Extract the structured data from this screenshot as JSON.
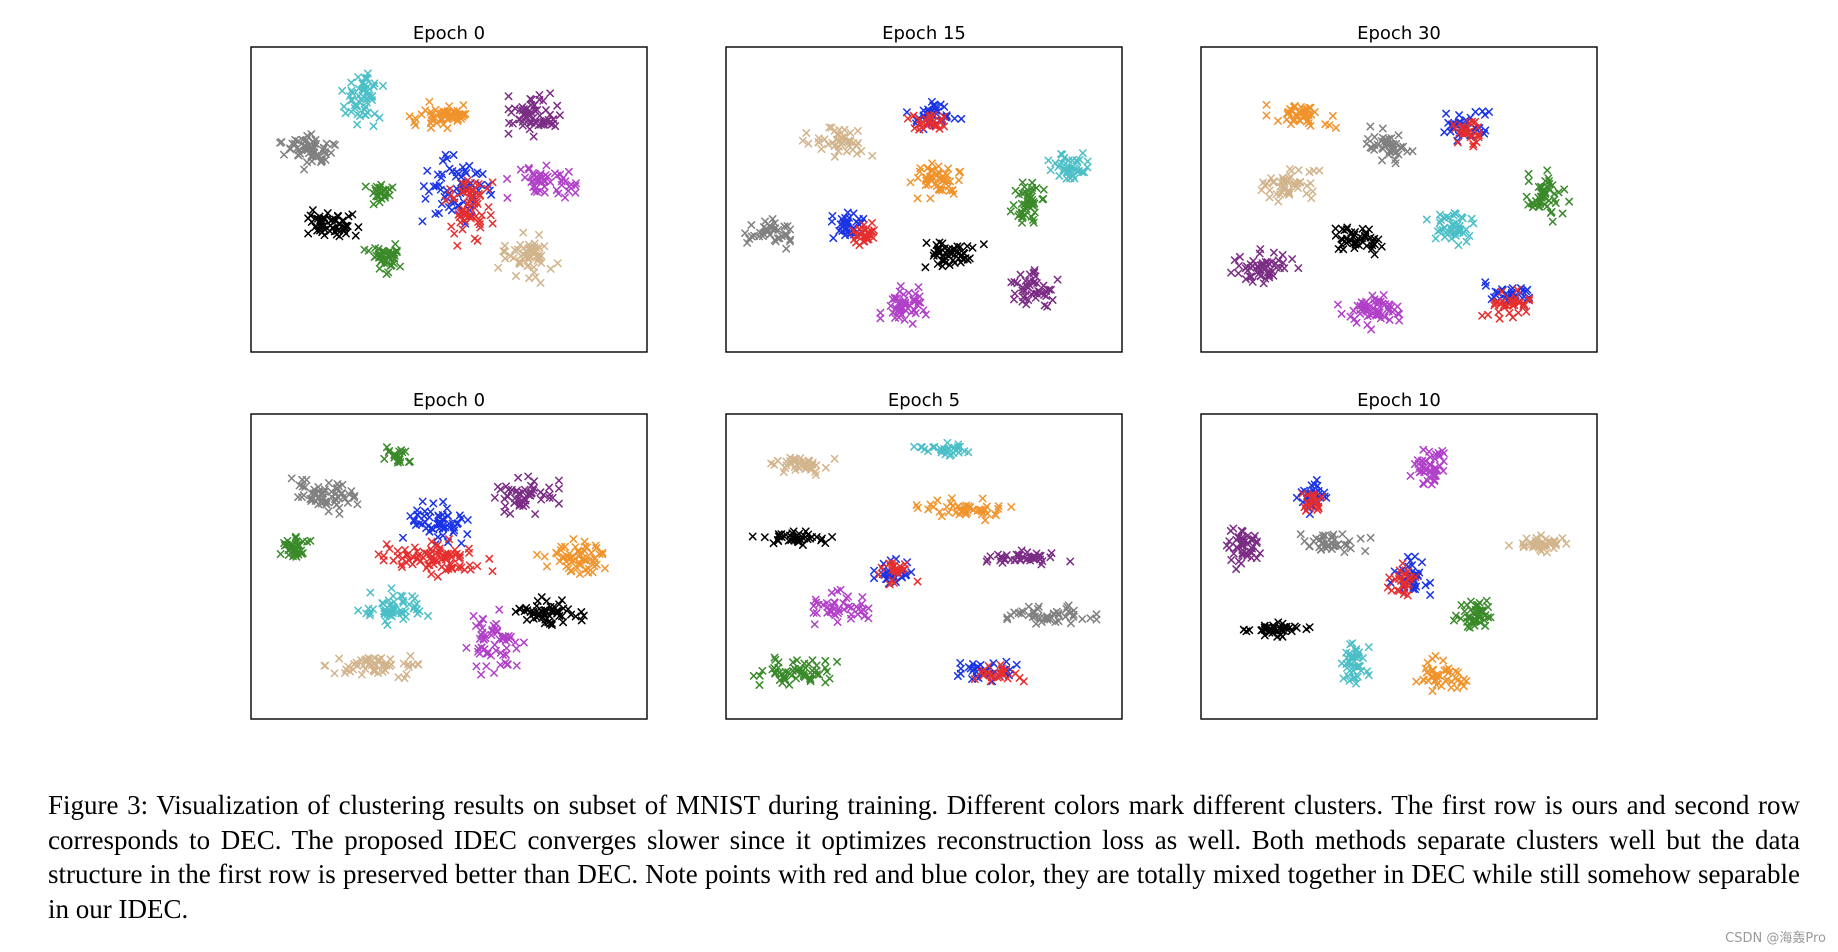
{
  "chart_data": [
    {
      "type": "scatter",
      "title": "Epoch 0",
      "xlim": [
        0,
        100
      ],
      "ylim": [
        0,
        100
      ],
      "grid": false,
      "marker": "x",
      "clusters": [
        {
          "color": "#4bbfc7",
          "center": [
            27,
            85
          ],
          "spread": [
            5,
            7
          ],
          "n": 55
        },
        {
          "color": "#808080",
          "center": [
            13,
            67
          ],
          "spread": [
            6,
            5
          ],
          "n": 60
        },
        {
          "color": "#f0932b",
          "center": [
            48,
            79
          ],
          "spread": [
            7,
            4
          ],
          "n": 55
        },
        {
          "color": "#7b2d85",
          "center": [
            72,
            80
          ],
          "spread": [
            6,
            6
          ],
          "n": 60
        },
        {
          "color": "#b040c8",
          "center": [
            76,
            56
          ],
          "spread": [
            8,
            5
          ],
          "n": 50
        },
        {
          "color": "#1a33e6",
          "center": [
            53,
            53
          ],
          "spread": [
            8,
            11
          ],
          "n": 70
        },
        {
          "color": "#e62e2e",
          "center": [
            55,
            47
          ],
          "spread": [
            5,
            10
          ],
          "n": 60
        },
        {
          "color": "#3a8a2a",
          "center": [
            31,
            52
          ],
          "spread": [
            3,
            3
          ],
          "n": 25
        },
        {
          "color": "#3a8a2a",
          "center": [
            33,
            30
          ],
          "spread": [
            5,
            5
          ],
          "n": 40
        },
        {
          "color": "#000000",
          "center": [
            18,
            41
          ],
          "spread": [
            6,
            5
          ],
          "n": 60
        },
        {
          "color": "#d2b48c",
          "center": [
            71,
            30
          ],
          "spread": [
            6,
            7
          ],
          "n": 55
        }
      ]
    },
    {
      "type": "scatter",
      "title": "Epoch 15",
      "xlim": [
        0,
        100
      ],
      "ylim": [
        0,
        100
      ],
      "grid": false,
      "marker": "x",
      "clusters": [
        {
          "color": "#d2b48c",
          "center": [
            27,
            70
          ],
          "spread": [
            7,
            4
          ],
          "n": 45
        },
        {
          "color": "#1a33e6",
          "center": [
            52,
            79
          ],
          "spread": [
            6,
            4
          ],
          "n": 40
        },
        {
          "color": "#e62e2e",
          "center": [
            51,
            77
          ],
          "spread": [
            4,
            3
          ],
          "n": 25
        },
        {
          "color": "#f0932b",
          "center": [
            53,
            57
          ],
          "spread": [
            5,
            5
          ],
          "n": 50
        },
        {
          "color": "#4bbfc7",
          "center": [
            89,
            61
          ],
          "spread": [
            5,
            4
          ],
          "n": 40
        },
        {
          "color": "#3a8a2a",
          "center": [
            77,
            49
          ],
          "spread": [
            4,
            7
          ],
          "n": 50
        },
        {
          "color": "#808080",
          "center": [
            9,
            38
          ],
          "spread": [
            5,
            4
          ],
          "n": 40
        },
        {
          "color": "#1a33e6",
          "center": [
            30,
            41
          ],
          "spread": [
            4,
            5
          ],
          "n": 35
        },
        {
          "color": "#e62e2e",
          "center": [
            34,
            38
          ],
          "spread": [
            3,
            4
          ],
          "n": 30
        },
        {
          "color": "#000000",
          "center": [
            58,
            31
          ],
          "spread": [
            6,
            4
          ],
          "n": 50
        },
        {
          "color": "#7b2d85",
          "center": [
            79,
            19
          ],
          "spread": [
            5,
            5
          ],
          "n": 45
        },
        {
          "color": "#b040c8",
          "center": [
            45,
            13
          ],
          "spread": [
            5,
            5
          ],
          "n": 50
        }
      ]
    },
    {
      "type": "scatter",
      "title": "Epoch 30",
      "xlim": [
        0,
        100
      ],
      "ylim": [
        0,
        100
      ],
      "grid": false,
      "marker": "x",
      "clusters": [
        {
          "color": "#f0932b",
          "center": [
            24,
            79
          ],
          "spread": [
            7,
            4
          ],
          "n": 45
        },
        {
          "color": "#808080",
          "center": [
            47,
            69
          ],
          "spread": [
            5,
            5
          ],
          "n": 45
        },
        {
          "color": "#1a33e6",
          "center": [
            68,
            76
          ],
          "spread": [
            5,
            5
          ],
          "n": 40
        },
        {
          "color": "#e62e2e",
          "center": [
            68,
            73
          ],
          "spread": [
            4,
            4
          ],
          "n": 25
        },
        {
          "color": "#d2b48c",
          "center": [
            21,
            55
          ],
          "spread": [
            7,
            5
          ],
          "n": 50
        },
        {
          "color": "#3a8a2a",
          "center": [
            89,
            51
          ],
          "spread": [
            5,
            7
          ],
          "n": 50
        },
        {
          "color": "#4bbfc7",
          "center": [
            64,
            40
          ],
          "spread": [
            5,
            5
          ],
          "n": 45
        },
        {
          "color": "#000000",
          "center": [
            40,
            36
          ],
          "spread": [
            6,
            4
          ],
          "n": 45
        },
        {
          "color": "#7b2d85",
          "center": [
            14,
            26
          ],
          "spread": [
            7,
            5
          ],
          "n": 55
        },
        {
          "color": "#b040c8",
          "center": [
            43,
            11
          ],
          "spread": [
            7,
            5
          ],
          "n": 60
        },
        {
          "color": "#1a33e6",
          "center": [
            79,
            17
          ],
          "spread": [
            7,
            3
          ],
          "n": 35
        },
        {
          "color": "#e62e2e",
          "center": [
            78,
            13
          ],
          "spread": [
            5,
            4
          ],
          "n": 35
        }
      ]
    },
    {
      "type": "scatter",
      "title": "Epoch 0",
      "xlim": [
        0,
        100
      ],
      "ylim": [
        0,
        100
      ],
      "grid": false,
      "marker": "x",
      "clusters": [
        {
          "color": "#808080",
          "center": [
            18,
            75
          ],
          "spread": [
            8,
            5
          ],
          "n": 60
        },
        {
          "color": "#3a8a2a",
          "center": [
            36,
            88
          ],
          "spread": [
            3,
            3
          ],
          "n": 20
        },
        {
          "color": "#7b2d85",
          "center": [
            70,
            75
          ],
          "spread": [
            7,
            5
          ],
          "n": 55
        },
        {
          "color": "#1a33e6",
          "center": [
            47,
            65
          ],
          "spread": [
            7,
            6
          ],
          "n": 60
        },
        {
          "color": "#e62e2e",
          "center": [
            47,
            53
          ],
          "spread": [
            13,
            5
          ],
          "n": 85
        },
        {
          "color": "#3a8a2a",
          "center": [
            9,
            57
          ],
          "spread": [
            4,
            4
          ],
          "n": 35
        },
        {
          "color": "#f0932b",
          "center": [
            84,
            53
          ],
          "spread": [
            8,
            5
          ],
          "n": 60
        },
        {
          "color": "#4bbfc7",
          "center": [
            36,
            36
          ],
          "spread": [
            8,
            5
          ],
          "n": 55
        },
        {
          "color": "#000000",
          "center": [
            76,
            34
          ],
          "spread": [
            8,
            4
          ],
          "n": 55
        },
        {
          "color": "#b040c8",
          "center": [
            62,
            23
          ],
          "spread": [
            6,
            9
          ],
          "n": 60
        },
        {
          "color": "#d2b48c",
          "center": [
            31,
            15
          ],
          "spread": [
            11,
            4
          ],
          "n": 55
        }
      ]
    },
    {
      "type": "scatter",
      "title": "Epoch 5",
      "xlim": [
        0,
        100
      ],
      "ylim": [
        0,
        100
      ],
      "grid": false,
      "marker": "x",
      "clusters": [
        {
          "color": "#d2b48c",
          "center": [
            17,
            86
          ],
          "spread": [
            7,
            3
          ],
          "n": 40
        },
        {
          "color": "#4bbfc7",
          "center": [
            56,
            91
          ],
          "spread": [
            7,
            2
          ],
          "n": 30
        },
        {
          "color": "#f0932b",
          "center": [
            60,
            70
          ],
          "spread": [
            10,
            3
          ],
          "n": 45
        },
        {
          "color": "#000000",
          "center": [
            15,
            60
          ],
          "spread": [
            8,
            2
          ],
          "n": 40
        },
        {
          "color": "#7b2d85",
          "center": [
            77,
            53
          ],
          "spread": [
            9,
            2
          ],
          "n": 40
        },
        {
          "color": "#1a33e6",
          "center": [
            42,
            48
          ],
          "spread": [
            4,
            5
          ],
          "n": 30
        },
        {
          "color": "#e62e2e",
          "center": [
            43,
            49
          ],
          "spread": [
            4,
            4
          ],
          "n": 20
        },
        {
          "color": "#808080",
          "center": [
            84,
            33
          ],
          "spread": [
            9,
            3
          ],
          "n": 45
        },
        {
          "color": "#b040c8",
          "center": [
            28,
            36
          ],
          "spread": [
            7,
            5
          ],
          "n": 45
        },
        {
          "color": "#1a33e6",
          "center": [
            66,
            13
          ],
          "spread": [
            8,
            3
          ],
          "n": 35
        },
        {
          "color": "#e62e2e",
          "center": [
            69,
            12
          ],
          "spread": [
            6,
            3
          ],
          "n": 25
        },
        {
          "color": "#3a8a2a",
          "center": [
            15,
            13
          ],
          "spread": [
            9,
            4
          ],
          "n": 55
        }
      ]
    },
    {
      "type": "scatter",
      "title": "Epoch 10",
      "xlim": [
        0,
        100
      ],
      "ylim": [
        0,
        100
      ],
      "grid": false,
      "marker": "x",
      "clusters": [
        {
          "color": "#b040c8",
          "center": [
            58,
            85
          ],
          "spread": [
            4,
            7
          ],
          "n": 45
        },
        {
          "color": "#1a33e6",
          "center": [
            27,
            75
          ],
          "spread": [
            4,
            5
          ],
          "n": 35
        },
        {
          "color": "#e62e2e",
          "center": [
            27,
            73
          ],
          "spread": [
            3,
            4
          ],
          "n": 20
        },
        {
          "color": "#7b2d85",
          "center": [
            9,
            57
          ],
          "spread": [
            4,
            6
          ],
          "n": 45
        },
        {
          "color": "#808080",
          "center": [
            33,
            58
          ],
          "spread": [
            8,
            3
          ],
          "n": 40
        },
        {
          "color": "#d2b48c",
          "center": [
            88,
            58
          ],
          "spread": [
            7,
            3
          ],
          "n": 40
        },
        {
          "color": "#1a33e6",
          "center": [
            53,
            47
          ],
          "spread": [
            4,
            7
          ],
          "n": 35
        },
        {
          "color": "#e62e2e",
          "center": [
            51,
            45
          ],
          "spread": [
            3,
            6
          ],
          "n": 25
        },
        {
          "color": "#3a8a2a",
          "center": [
            70,
            33
          ],
          "spread": [
            5,
            4
          ],
          "n": 45
        },
        {
          "color": "#000000",
          "center": [
            17,
            28
          ],
          "spread": [
            7,
            2
          ],
          "n": 40
        },
        {
          "color": "#4bbfc7",
          "center": [
            38,
            16
          ],
          "spread": [
            3,
            6
          ],
          "n": 40
        },
        {
          "color": "#f0932b",
          "center": [
            62,
            12
          ],
          "spread": [
            6,
            5
          ],
          "n": 45
        }
      ]
    }
  ],
  "caption": "Figure 3: Visualization of clustering results on subset of MNIST during training. Different colors mark different clusters. The first row is ours and second row corresponds to DEC. The proposed IDEC converges slower since it optimizes reconstruction loss as well. Both methods separate clusters well but the data structure in the first row is preserved better than DEC. Note points with red and blue color, they are totally mixed together in DEC while still somehow separable in our IDEC.",
  "watermark": "CSDN @海轰Pro"
}
